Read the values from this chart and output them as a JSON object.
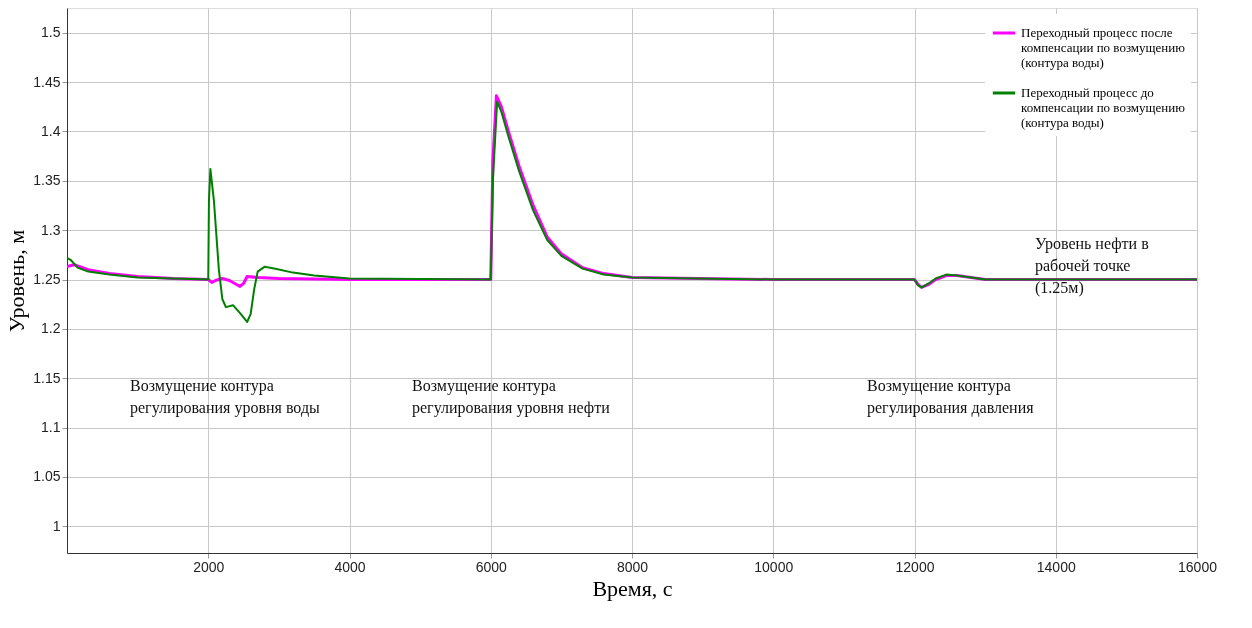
{
  "chart_data": {
    "type": "line",
    "xlabel": "Время, с",
    "ylabel": "Уровень, м",
    "xlim": [
      0,
      16000
    ],
    "xticks": [
      2000,
      4000,
      6000,
      8000,
      10000,
      12000,
      14000,
      16000
    ],
    "ylim": [
      0.973,
      1.525
    ],
    "yticks": [
      1,
      1.05,
      1.1,
      1.15,
      1.2,
      1.25,
      1.3,
      1.35,
      1.4,
      1.45,
      1.5
    ],
    "grid": true,
    "legend": "top right",
    "marker": "none",
    "line_style": "solid",
    "series": [
      {
        "name": "Переходный процесс после компенсации по возмущению (контура воды)",
        "color": "#ff00ff",
        "x": [
          0,
          100,
          300,
          600,
          1000,
          1500,
          2000,
          2050,
          2100,
          2200,
          2300,
          2400,
          2450,
          2500,
          2550,
          2700,
          3000,
          4000,
          6000,
          6030,
          6080,
          6150,
          6250,
          6400,
          6600,
          6800,
          7000,
          7300,
          7600,
          8000,
          10000,
          12000,
          12050,
          12100,
          12200,
          12300,
          12450,
          12600,
          12800,
          13000,
          16000
        ],
        "values": [
          1.263,
          1.265,
          1.26,
          1.256,
          1.253,
          1.251,
          1.25,
          1.247,
          1.249,
          1.251,
          1.249,
          1.245,
          1.243,
          1.246,
          1.253,
          1.252,
          1.251,
          1.25,
          1.25,
          1.37,
          1.436,
          1.425,
          1.4,
          1.365,
          1.325,
          1.293,
          1.276,
          1.262,
          1.256,
          1.252,
          1.25,
          1.25,
          1.245,
          1.242,
          1.245,
          1.25,
          1.254,
          1.254,
          1.252,
          1.25,
          1.25
        ]
      },
      {
        "name": "Переходный процесс до компенсации по возмущению (контура воды)",
        "color": "#008000",
        "x": [
          0,
          50,
          150,
          300,
          600,
          1000,
          1500,
          2000,
          2010,
          2030,
          2080,
          2150,
          2200,
          2250,
          2350,
          2450,
          2550,
          2600,
          2650,
          2700,
          2800,
          2950,
          3200,
          3500,
          4000,
          6000,
          6030,
          6090,
          6150,
          6250,
          6400,
          6600,
          6800,
          7000,
          7300,
          7600,
          8000,
          10000,
          12000,
          12050,
          12100,
          12200,
          12300,
          12450,
          12600,
          12800,
          13000,
          16000
        ],
        "values": [
          1.272,
          1.27,
          1.262,
          1.258,
          1.255,
          1.252,
          1.251,
          1.25,
          1.33,
          1.362,
          1.33,
          1.26,
          1.23,
          1.222,
          1.224,
          1.216,
          1.207,
          1.215,
          1.24,
          1.258,
          1.263,
          1.261,
          1.257,
          1.254,
          1.251,
          1.25,
          1.35,
          1.43,
          1.42,
          1.395,
          1.36,
          1.32,
          1.29,
          1.274,
          1.261,
          1.255,
          1.252,
          1.25,
          1.25,
          1.244,
          1.242,
          1.246,
          1.251,
          1.255,
          1.254,
          1.252,
          1.25,
          1.25
        ]
      }
    ],
    "annotations": [
      "Возмущение контура регулирования уровня воды",
      "Возмущение контура регулирования уровня нефти",
      "Возмущение контура регулирования давления",
      "Уровень нефти в рабочей точке (1.25м)"
    ]
  }
}
